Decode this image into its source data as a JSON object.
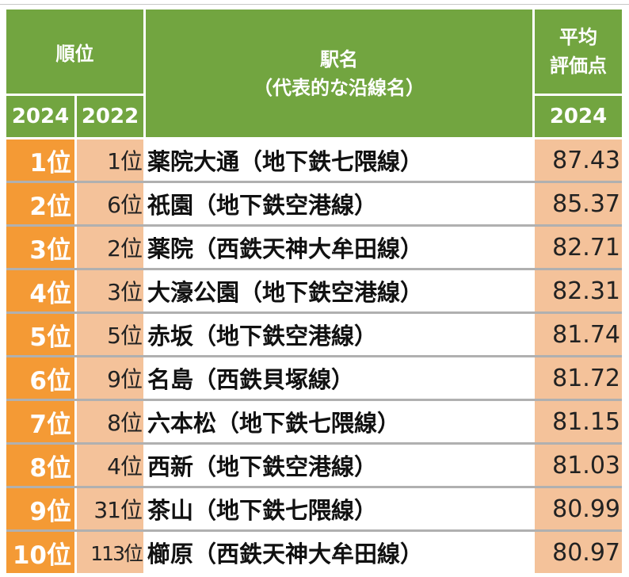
{
  "header": {
    "rank_group": "順位",
    "year_current": "2024",
    "year_previous": "2022",
    "station_line1": "駅名",
    "station_line2": "（代表的な沿線名）",
    "score_line1": "平均",
    "score_line2": "評価点",
    "score_year": "2024"
  },
  "rows": [
    {
      "rank": "1位",
      "prev": "1位",
      "station": "薬院大通（地下鉄七隈線）",
      "score": "87.43"
    },
    {
      "rank": "2位",
      "prev": "6位",
      "station": "祇園（地下鉄空港線）",
      "score": "85.37"
    },
    {
      "rank": "3位",
      "prev": "2位",
      "station": "薬院（西鉄天神大牟田線）",
      "score": "82.71"
    },
    {
      "rank": "4位",
      "prev": "3位",
      "station": "大濠公園（地下鉄空港線）",
      "score": "82.31"
    },
    {
      "rank": "5位",
      "prev": "5位",
      "station": "赤坂（地下鉄空港線）",
      "score": "81.74"
    },
    {
      "rank": "6位",
      "prev": "9位",
      "station": "名島（西鉄貝塚線）",
      "score": "81.72"
    },
    {
      "rank": "7位",
      "prev": "8位",
      "station": "六本松（地下鉄七隈線）",
      "score": "81.15"
    },
    {
      "rank": "8位",
      "prev": "4位",
      "station": "西新（地下鉄空港線）",
      "score": "81.03"
    },
    {
      "rank": "9位",
      "prev": "31位",
      "station": "茶山（地下鉄七隈線）",
      "score": "80.99"
    },
    {
      "rank": "10位",
      "prev": "113位",
      "station": "櫛原（西鉄天神大牟田線）",
      "score": "80.97"
    }
  ],
  "colors": {
    "header_green": "#72a540",
    "rank_orange": "#f49a35",
    "peach": "#f4c29a"
  }
}
